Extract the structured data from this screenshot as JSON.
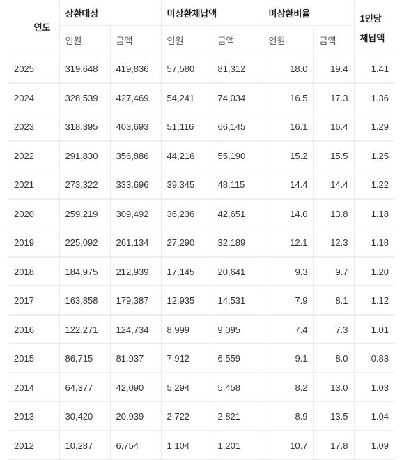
{
  "table": {
    "headers": {
      "year": "연도",
      "group_repay_target": "상환대상",
      "group_unpaid": "미상환체납액",
      "group_unpaid_ratio": "미상환비율",
      "per_capita_line1": "1인당",
      "per_capita_line2": "체납액",
      "sub_people": "인원",
      "sub_amount": "금액"
    },
    "rows": [
      {
        "year": "2025",
        "target_people": "319,648",
        "target_amount": "419,836",
        "unpaid_people": "57,580",
        "unpaid_amount": "81,312",
        "ratio_people": "18.0",
        "ratio_amount": "19.4",
        "per_capita": "1.41"
      },
      {
        "year": "2024",
        "target_people": "328,539",
        "target_amount": "427,469",
        "unpaid_people": "54,241",
        "unpaid_amount": "74,034",
        "ratio_people": "16.5",
        "ratio_amount": "17.3",
        "per_capita": "1.36"
      },
      {
        "year": "2023",
        "target_people": "318,395",
        "target_amount": "403,693",
        "unpaid_people": "51,116",
        "unpaid_amount": "66,145",
        "ratio_people": "16.1",
        "ratio_amount": "16.4",
        "per_capita": "1.29"
      },
      {
        "year": "2022",
        "target_people": "291,830",
        "target_amount": "356,886",
        "unpaid_people": "44,216",
        "unpaid_amount": "55,190",
        "ratio_people": "15.2",
        "ratio_amount": "15.5",
        "per_capita": "1.25"
      },
      {
        "year": "2021",
        "target_people": "273,322",
        "target_amount": "333,696",
        "unpaid_people": "39,345",
        "unpaid_amount": "48,115",
        "ratio_people": "14.4",
        "ratio_amount": "14.4",
        "per_capita": "1.22"
      },
      {
        "year": "2020",
        "target_people": "259,219",
        "target_amount": "309,492",
        "unpaid_people": "36,236",
        "unpaid_amount": "42,651",
        "ratio_people": "14.0",
        "ratio_amount": "13.8",
        "per_capita": "1.18"
      },
      {
        "year": "2019",
        "target_people": "225,092",
        "target_amount": "261,134",
        "unpaid_people": "27,290",
        "unpaid_amount": "32,189",
        "ratio_people": "12.1",
        "ratio_amount": "12.3",
        "per_capita": "1.18"
      },
      {
        "year": "2018",
        "target_people": "184,975",
        "target_amount": "212,939",
        "unpaid_people": "17,145",
        "unpaid_amount": "20,641",
        "ratio_people": "9.3",
        "ratio_amount": "9.7",
        "per_capita": "1.20"
      },
      {
        "year": "2017",
        "target_people": "163,858",
        "target_amount": "179,387",
        "unpaid_people": "12,935",
        "unpaid_amount": "14,531",
        "ratio_people": "7.9",
        "ratio_amount": "8.1",
        "per_capita": "1.12"
      },
      {
        "year": "2016",
        "target_people": "122,271",
        "target_amount": "124,734",
        "unpaid_people": "8,999",
        "unpaid_amount": "9,095",
        "ratio_people": "7.4",
        "ratio_amount": "7.3",
        "per_capita": "1.01"
      },
      {
        "year": "2015",
        "target_people": "86,715",
        "target_amount": "81,937",
        "unpaid_people": "7,912",
        "unpaid_amount": "6,559",
        "ratio_people": "9.1",
        "ratio_amount": "8.0",
        "per_capita": "0.83"
      },
      {
        "year": "2014",
        "target_people": "64,377",
        "target_amount": "42,090",
        "unpaid_people": "5,294",
        "unpaid_amount": "5,458",
        "ratio_people": "8.2",
        "ratio_amount": "13.0",
        "per_capita": "1.03"
      },
      {
        "year": "2013",
        "target_people": "30,420",
        "target_amount": "20,939",
        "unpaid_people": "2,722",
        "unpaid_amount": "2,821",
        "ratio_people": "8.9",
        "ratio_amount": "13.5",
        "per_capita": "1.04"
      },
      {
        "year": "2012",
        "target_people": "10,287",
        "target_amount": "6,754",
        "unpaid_people": "1,104",
        "unpaid_amount": "1,201",
        "ratio_people": "10.7",
        "ratio_amount": "17.8",
        "per_capita": "1.09"
      }
    ]
  }
}
